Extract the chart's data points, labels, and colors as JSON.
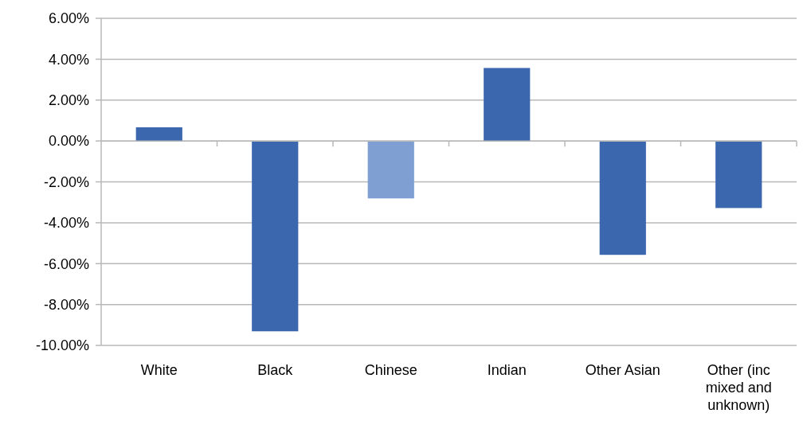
{
  "chart_data": {
    "type": "bar",
    "categories": [
      "White",
      "Black",
      "Chinese",
      "Indian",
      "Other Asian",
      "Other (inc mixed and unknown)"
    ],
    "values": [
      0.67,
      -9.31,
      -2.81,
      3.57,
      -5.57,
      -3.28
    ],
    "colors": [
      "#3a67ae",
      "#3a67ae",
      "#7f9fd3",
      "#3a67ae",
      "#3a67ae",
      "#3a67ae"
    ],
    "ylim": [
      -10,
      6
    ],
    "yticks": [
      {
        "value": -10,
        "label": "-10.00%"
      },
      {
        "value": -8,
        "label": "-8.00%"
      },
      {
        "value": -6,
        "label": "-6.00%"
      },
      {
        "value": -4,
        "label": "-4.00%"
      },
      {
        "value": -2,
        "label": "-2.00%"
      },
      {
        "value": 0,
        "label": "0.00%"
      },
      {
        "value": 2,
        "label": "2.00%"
      },
      {
        "value": 4,
        "label": "4.00%"
      },
      {
        "value": 6,
        "label": "6.00%"
      }
    ],
    "grid": "y"
  }
}
